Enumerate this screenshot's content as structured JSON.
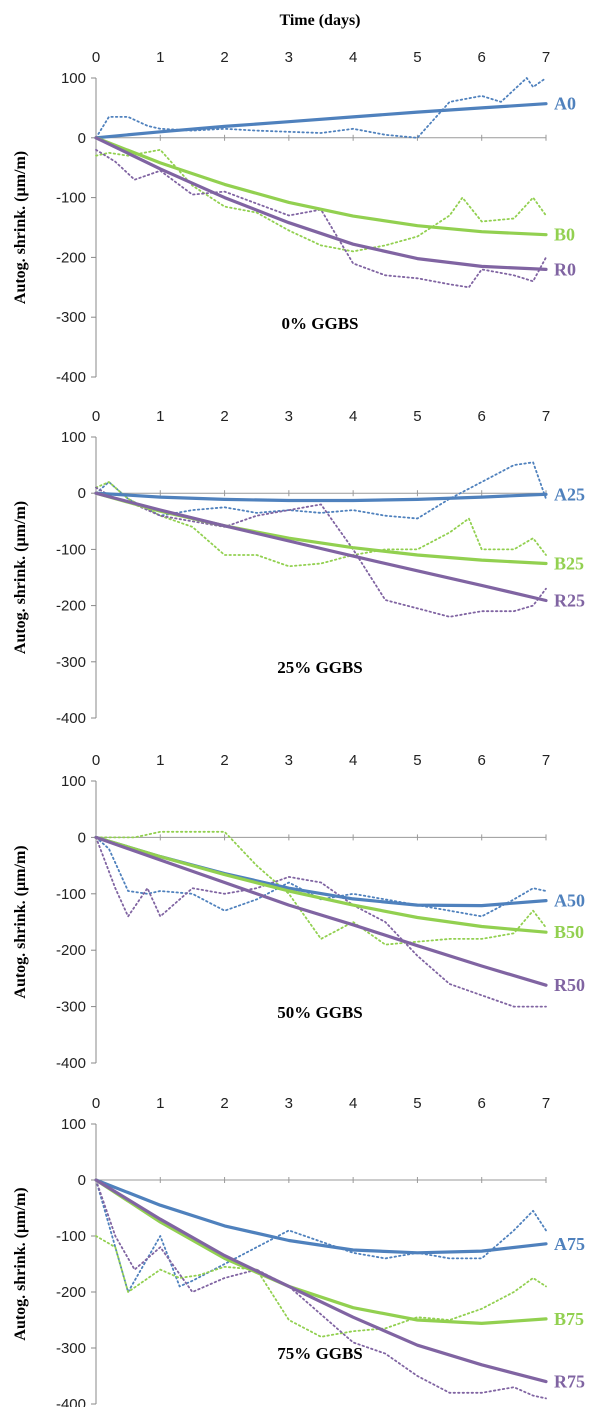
{
  "figure": {
    "top_axis_title": "Time (days)"
  },
  "colors": {
    "A": "#4f81bd",
    "B": "#92d050",
    "R": "#8064a2",
    "axis": "#888888",
    "grid": "#9a9a9a"
  },
  "chart_data": [
    {
      "type": "line",
      "panel_label": "0% GGBS",
      "ylabel": "Autog. shrink. (µm/m)",
      "xlim": [
        0,
        7
      ],
      "ylim": [
        -400,
        100
      ],
      "x_ticks": [
        "0",
        "1",
        "2",
        "3",
        "4",
        "5",
        "6",
        "7"
      ],
      "y_ticks": [
        "100",
        "0",
        "-100",
        "-200",
        "-300",
        "-400"
      ],
      "series": [
        {
          "name": "A0",
          "group": "A",
          "style": "solid",
          "x": [
            0,
            1,
            2,
            3,
            4,
            5,
            6,
            7
          ],
          "y": [
            0,
            10,
            19,
            27,
            35,
            43,
            50,
            57
          ]
        },
        {
          "name": "B0",
          "group": "B",
          "style": "solid",
          "x": [
            0,
            1,
            2,
            3,
            4,
            5,
            6,
            7
          ],
          "y": [
            0,
            -42,
            -78,
            -108,
            -131,
            -147,
            -157,
            -162
          ]
        },
        {
          "name": "R0",
          "group": "R",
          "style": "solid",
          "x": [
            0,
            1,
            2,
            3,
            4,
            5,
            6,
            7
          ],
          "y": [
            0,
            -52,
            -100,
            -142,
            -178,
            -202,
            -215,
            -220
          ]
        },
        {
          "group": "A",
          "style": "dotted",
          "x": [
            0,
            0.2,
            0.5,
            0.8,
            1.0,
            1.5,
            2.0,
            2.5,
            3.0,
            3.5,
            4.0,
            4.5,
            5.0,
            5.5,
            6.0,
            6.3,
            6.7,
            6.8,
            7.0
          ],
          "y": [
            0,
            35,
            35,
            20,
            15,
            12,
            15,
            12,
            10,
            8,
            15,
            5,
            0,
            60,
            70,
            60,
            100,
            85,
            100
          ]
        },
        {
          "group": "B",
          "style": "dotted",
          "x": [
            0,
            0.2,
            0.5,
            1.0,
            1.5,
            2.0,
            2.5,
            3.0,
            3.5,
            4.0,
            4.5,
            5.0,
            5.5,
            5.7,
            6.0,
            6.5,
            6.8,
            7.0
          ],
          "y": [
            -30,
            -25,
            -30,
            -20,
            -80,
            -115,
            -125,
            -155,
            -180,
            -190,
            -180,
            -165,
            -130,
            -100,
            -140,
            -135,
            -100,
            -130
          ]
        },
        {
          "group": "R",
          "style": "dotted",
          "x": [
            0,
            0.3,
            0.6,
            1.0,
            1.5,
            2.0,
            2.5,
            3.0,
            3.5,
            4.0,
            4.5,
            5.0,
            5.5,
            5.8,
            6.0,
            6.5,
            6.8,
            7.0
          ],
          "y": [
            -20,
            -40,
            -70,
            -55,
            -95,
            -90,
            -110,
            -130,
            -120,
            -210,
            -230,
            -235,
            -245,
            -250,
            -220,
            -230,
            -240,
            -200
          ]
        }
      ]
    },
    {
      "type": "line",
      "panel_label": "25% GGBS",
      "ylabel": "Autog. shrink. (µm/m)",
      "xlim": [
        0,
        7
      ],
      "ylim": [
        -400,
        100
      ],
      "x_ticks": [
        "0",
        "1",
        "2",
        "3",
        "4",
        "5",
        "6",
        "7"
      ],
      "y_ticks": [
        "100",
        "0",
        "-100",
        "-200",
        "-300",
        "-400"
      ],
      "series": [
        {
          "name": "A25",
          "group": "A",
          "style": "solid",
          "x": [
            0,
            1,
            2,
            3,
            4,
            5,
            6,
            7
          ],
          "y": [
            0,
            -7,
            -11,
            -13,
            -13,
            -11,
            -7,
            -2
          ]
        },
        {
          "name": "B25",
          "group": "B",
          "style": "solid",
          "x": [
            0,
            1,
            2,
            3,
            4,
            5,
            6,
            7
          ],
          "y": [
            0,
            -32,
            -58,
            -80,
            -97,
            -110,
            -119,
            -125
          ]
        },
        {
          "name": "R25",
          "group": "R",
          "style": "solid",
          "x": [
            0,
            1,
            2,
            3,
            4,
            5,
            6,
            7
          ],
          "y": [
            0,
            -30,
            -58,
            -85,
            -112,
            -138,
            -164,
            -191
          ]
        },
        {
          "group": "A",
          "style": "dotted",
          "x": [
            0,
            0.2,
            0.5,
            1.0,
            1.5,
            2.0,
            2.5,
            3.0,
            3.5,
            4.0,
            4.5,
            5.0,
            5.5,
            6.0,
            6.5,
            6.8,
            7.0
          ],
          "y": [
            0,
            20,
            -10,
            -40,
            -30,
            -25,
            -35,
            -30,
            -35,
            -30,
            -40,
            -45,
            -10,
            20,
            50,
            55,
            -10
          ]
        },
        {
          "group": "B",
          "style": "dotted",
          "x": [
            0,
            0.2,
            0.5,
            1.0,
            1.5,
            2.0,
            2.5,
            3.0,
            3.5,
            4.0,
            4.5,
            5.0,
            5.5,
            5.8,
            6.0,
            6.5,
            6.8,
            7.0
          ],
          "y": [
            10,
            20,
            -10,
            -40,
            -60,
            -110,
            -110,
            -130,
            -125,
            -110,
            -100,
            -100,
            -70,
            -45,
            -100,
            -100,
            -80,
            -110
          ]
        },
        {
          "group": "R",
          "style": "dotted",
          "x": [
            0,
            0.3,
            0.6,
            1.0,
            1.5,
            2.0,
            2.5,
            3.0,
            3.5,
            4.0,
            4.5,
            5.0,
            5.5,
            6.0,
            6.5,
            6.8,
            7.0
          ],
          "y": [
            10,
            -10,
            -20,
            -40,
            -50,
            -60,
            -40,
            -30,
            -20,
            -100,
            -190,
            -205,
            -220,
            -210,
            -210,
            -200,
            -170
          ]
        }
      ]
    },
    {
      "type": "line",
      "panel_label": "50% GGBS",
      "ylabel": "Autog. shrink. (µm/m)",
      "xlim": [
        0,
        7
      ],
      "ylim": [
        -400,
        100
      ],
      "x_ticks": [
        "0",
        "1",
        "2",
        "3",
        "4",
        "5",
        "6",
        "7"
      ],
      "y_ticks": [
        "100",
        "0",
        "-100",
        "-200",
        "-300",
        "-400"
      ],
      "series": [
        {
          "name": "A50",
          "group": "A",
          "style": "solid",
          "x": [
            0,
            1,
            2,
            3,
            4,
            5,
            6,
            7
          ],
          "y": [
            0,
            -34,
            -64,
            -90,
            -109,
            -120,
            -121,
            -112
          ]
        },
        {
          "name": "B50",
          "group": "B",
          "style": "solid",
          "x": [
            0,
            1,
            2,
            3,
            4,
            5,
            6,
            7
          ],
          "y": [
            0,
            -34,
            -66,
            -95,
            -120,
            -142,
            -158,
            -168
          ]
        },
        {
          "name": "R50",
          "group": "R",
          "style": "solid",
          "x": [
            0,
            1,
            2,
            3,
            4,
            5,
            6,
            7
          ],
          "y": [
            0,
            -40,
            -80,
            -120,
            -155,
            -192,
            -228,
            -262
          ]
        },
        {
          "group": "A",
          "style": "dotted",
          "x": [
            0,
            0.2,
            0.5,
            0.8,
            1.0,
            1.5,
            2.0,
            2.5,
            3.0,
            3.5,
            4.0,
            4.5,
            5.0,
            5.5,
            6.0,
            6.5,
            6.8,
            7.0
          ],
          "y": [
            0,
            -20,
            -95,
            -100,
            -95,
            -100,
            -130,
            -110,
            -80,
            -110,
            -100,
            -110,
            -120,
            -130,
            -140,
            -110,
            -90,
            -95
          ]
        },
        {
          "group": "B",
          "style": "dotted",
          "x": [
            0,
            0.3,
            0.6,
            1.0,
            1.5,
            2.0,
            2.5,
            3.0,
            3.5,
            4.0,
            4.5,
            5.0,
            5.5,
            6.0,
            6.5,
            6.8,
            7.0
          ],
          "y": [
            0,
            0,
            0,
            10,
            10,
            10,
            -50,
            -100,
            -180,
            -150,
            -190,
            -185,
            -180,
            -180,
            -170,
            -130,
            -160
          ]
        },
        {
          "group": "R",
          "style": "dotted",
          "x": [
            0,
            0.3,
            0.5,
            0.8,
            1.0,
            1.5,
            2.0,
            2.5,
            3.0,
            3.5,
            4.0,
            4.5,
            5.0,
            5.5,
            6.0,
            6.5,
            7.0
          ],
          "y": [
            0,
            -90,
            -140,
            -90,
            -140,
            -90,
            -100,
            -90,
            -70,
            -80,
            -120,
            -150,
            -210,
            -260,
            -280,
            -300,
            -300
          ]
        }
      ]
    },
    {
      "type": "line",
      "panel_label": "75% GGBS",
      "ylabel": "Autog. shrink. (µm/m)",
      "xlim": [
        0,
        7
      ],
      "ylim": [
        -400,
        100
      ],
      "x_ticks": [
        "0",
        "1",
        "2",
        "3",
        "4",
        "5",
        "6",
        "7"
      ],
      "y_ticks": [
        "100",
        "0",
        "-100",
        "-200",
        "-300",
        "-400"
      ],
      "series": [
        {
          "name": "A75",
          "group": "A",
          "style": "solid",
          "x": [
            0,
            1,
            2,
            3,
            4,
            5,
            6,
            7
          ],
          "y": [
            0,
            -45,
            -82,
            -108,
            -125,
            -130,
            -127,
            -114
          ]
        },
        {
          "name": "B75",
          "group": "B",
          "style": "solid",
          "x": [
            0,
            1,
            2,
            3,
            4,
            5,
            6,
            7
          ],
          "y": [
            0,
            -75,
            -140,
            -190,
            -228,
            -250,
            -256,
            -248
          ]
        },
        {
          "name": "R75",
          "group": "R",
          "style": "solid",
          "x": [
            0,
            1,
            2,
            3,
            4,
            5,
            6,
            7
          ],
          "y": [
            0,
            -70,
            -135,
            -190,
            -245,
            -295,
            -330,
            -360
          ]
        },
        {
          "group": "A",
          "style": "dotted",
          "x": [
            0,
            0.2,
            0.5,
            1.0,
            1.3,
            1.5,
            2.0,
            2.5,
            3.0,
            3.5,
            4.0,
            4.5,
            5.0,
            5.5,
            6.0,
            6.5,
            6.8,
            7.0
          ],
          "y": [
            0,
            -80,
            -200,
            -100,
            -190,
            -180,
            -150,
            -120,
            -90,
            -110,
            -130,
            -140,
            -130,
            -140,
            -140,
            -90,
            -55,
            -90
          ]
        },
        {
          "group": "B",
          "style": "dotted",
          "x": [
            0,
            0.3,
            0.5,
            1.0,
            1.3,
            1.6,
            2.0,
            2.5,
            3.0,
            3.5,
            4.0,
            4.5,
            5.0,
            5.5,
            6.0,
            6.5,
            6.8,
            7.0
          ],
          "y": [
            -100,
            -120,
            -200,
            -160,
            -175,
            -170,
            -155,
            -160,
            -250,
            -280,
            -270,
            -265,
            -245,
            -250,
            -230,
            -200,
            -175,
            -190
          ]
        },
        {
          "group": "R",
          "style": "dotted",
          "x": [
            0,
            0.3,
            0.6,
            1.0,
            1.5,
            2.0,
            2.5,
            3.0,
            3.5,
            4.0,
            4.5,
            5.0,
            5.5,
            6.0,
            6.5,
            6.8,
            7.0
          ],
          "y": [
            0,
            -100,
            -160,
            -120,
            -200,
            -175,
            -160,
            -190,
            -240,
            -290,
            -310,
            -350,
            -380,
            -380,
            -370,
            -385,
            -390
          ]
        }
      ]
    }
  ]
}
